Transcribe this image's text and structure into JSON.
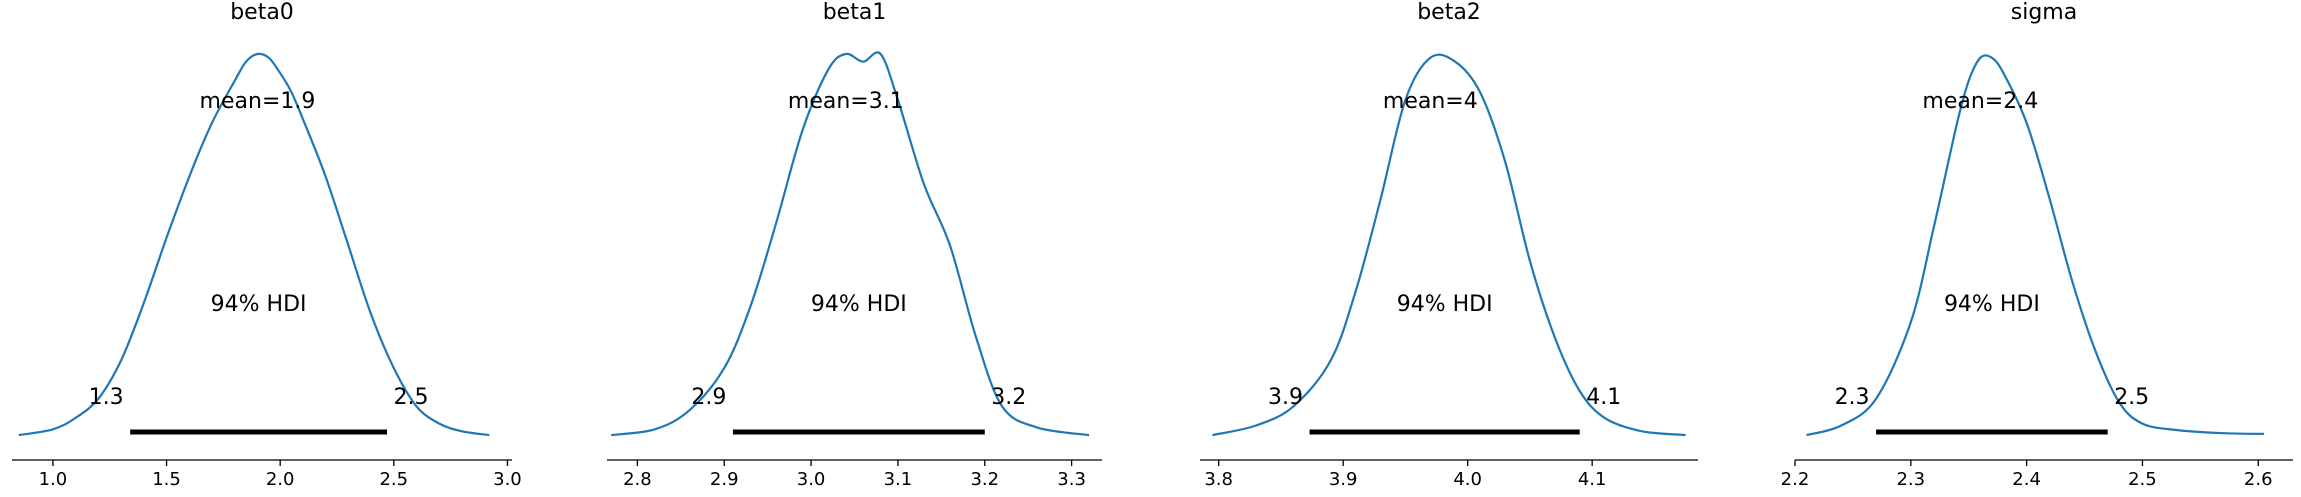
{
  "chart_data": [
    {
      "type": "line",
      "title": "beta0",
      "color": "#1f77b4",
      "xlim": [
        0.82,
        3.02
      ],
      "xticks": [
        1.0,
        1.5,
        2.0,
        2.5,
        3.0
      ],
      "xtick_labels": [
        "1.0",
        "1.5",
        "2.0",
        "2.5",
        "3.0"
      ],
      "mean_label": "mean=1.9",
      "hdi_label": "94% HDI",
      "hdi": [
        1.34,
        2.47
      ],
      "hdi_labels": [
        "1.3",
        "2.5"
      ],
      "x": [
        0.85,
        1.0,
        1.1,
        1.2,
        1.3,
        1.4,
        1.5,
        1.6,
        1.7,
        1.8,
        1.85,
        1.9,
        1.95,
        2.0,
        2.05,
        2.1,
        2.2,
        2.3,
        2.4,
        2.5,
        2.6,
        2.7,
        2.8,
        2.92
      ],
      "density": [
        0.005,
        0.02,
        0.05,
        0.1,
        0.2,
        0.35,
        0.52,
        0.68,
        0.82,
        0.93,
        0.98,
        1.0,
        0.99,
        0.95,
        0.9,
        0.83,
        0.68,
        0.5,
        0.32,
        0.18,
        0.08,
        0.035,
        0.015,
        0.005
      ]
    },
    {
      "type": "line",
      "title": "beta1",
      "color": "#1f77b4",
      "xlim": [
        2.765,
        3.335
      ],
      "xticks": [
        2.8,
        2.9,
        3.0,
        3.1,
        3.2,
        3.3
      ],
      "xtick_labels": [
        "2.8",
        "2.9",
        "3.0",
        "3.1",
        "3.2",
        "3.3"
      ],
      "mean_label": "mean=3.1",
      "hdi_label": "94% HDI",
      "hdi": [
        2.91,
        3.2
      ],
      "hdi_labels": [
        "2.9",
        "3.2"
      ],
      "x": [
        2.77,
        2.82,
        2.86,
        2.9,
        2.93,
        2.96,
        2.99,
        3.02,
        3.04,
        3.06,
        3.08,
        3.1,
        3.13,
        3.16,
        3.19,
        3.22,
        3.26,
        3.32
      ],
      "density": [
        0.005,
        0.02,
        0.07,
        0.18,
        0.34,
        0.56,
        0.8,
        0.96,
        1.0,
        0.98,
        1.0,
        0.88,
        0.66,
        0.5,
        0.26,
        0.08,
        0.025,
        0.005
      ]
    },
    {
      "type": "line",
      "title": "beta2",
      "color": "#1f77b4",
      "xlim": [
        3.785,
        4.185
      ],
      "xticks": [
        3.8,
        3.9,
        4.0,
        4.1
      ],
      "xtick_labels": [
        "3.8",
        "3.9",
        "4.0",
        "4.1"
      ],
      "mean_label": "mean=4",
      "hdi_label": "94% HDI",
      "hdi": [
        3.873,
        4.09
      ],
      "hdi_labels": [
        "3.9",
        "4.1"
      ],
      "x": [
        3.795,
        3.83,
        3.86,
        3.89,
        3.91,
        3.93,
        3.95,
        3.97,
        3.99,
        4.01,
        4.03,
        4.05,
        4.07,
        4.09,
        4.11,
        4.14,
        4.175
      ],
      "density": [
        0.005,
        0.03,
        0.08,
        0.2,
        0.38,
        0.62,
        0.88,
        0.99,
        0.98,
        0.9,
        0.72,
        0.46,
        0.26,
        0.12,
        0.05,
        0.015,
        0.005
      ]
    },
    {
      "type": "line",
      "title": "sigma",
      "color": "#1f77b4",
      "xlim": [
        2.2,
        2.63
      ],
      "xticks": [
        2.2,
        2.3,
        2.4,
        2.5,
        2.6
      ],
      "xtick_labels": [
        "2.2",
        "2.3",
        "2.4",
        "2.5",
        "2.6"
      ],
      "mean_label": "mean=2.4",
      "hdi_label": "94% HDI",
      "hdi": [
        2.27,
        2.47
      ],
      "hdi_labels": [
        "2.3",
        "2.5"
      ],
      "x": [
        2.21,
        2.24,
        2.27,
        2.3,
        2.32,
        2.34,
        2.35,
        2.36,
        2.37,
        2.38,
        2.4,
        2.42,
        2.44,
        2.46,
        2.48,
        2.5,
        2.53,
        2.57,
        2.605
      ],
      "density": [
        0.005,
        0.03,
        0.1,
        0.3,
        0.55,
        0.82,
        0.93,
        0.99,
        0.99,
        0.95,
        0.82,
        0.62,
        0.4,
        0.22,
        0.09,
        0.035,
        0.018,
        0.01,
        0.008
      ]
    }
  ]
}
